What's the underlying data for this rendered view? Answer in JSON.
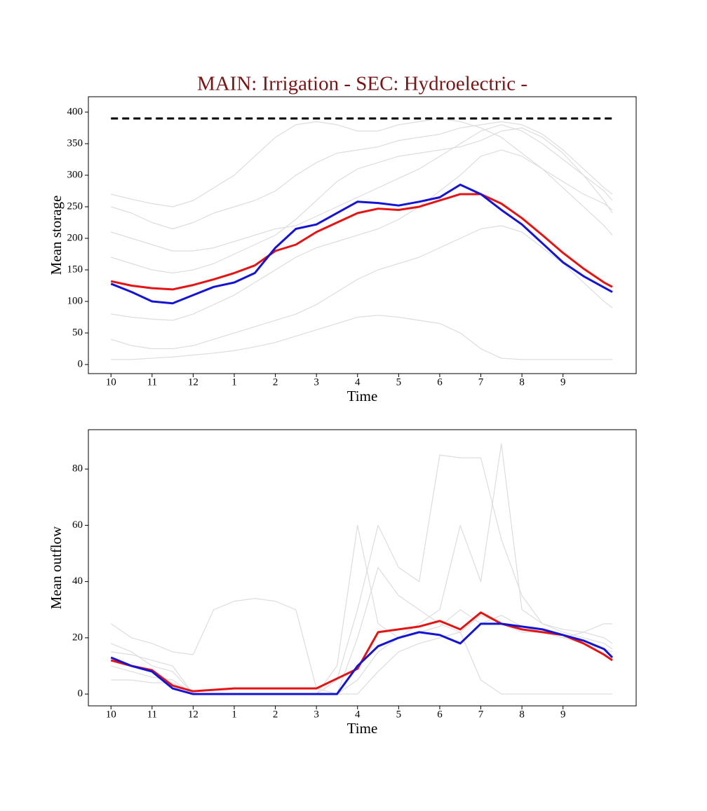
{
  "chart_data": [
    {
      "type": "line",
      "title": "MAIN: Irrigation - SEC: Hydroelectric -",
      "title_color": "#7b1414",
      "xlabel": "Time",
      "ylabel": "Mean storage",
      "x": [
        0,
        0.5,
        1,
        1.5,
        2,
        2.5,
        3,
        3.5,
        4,
        4.5,
        5,
        5.5,
        6,
        6.5,
        7,
        7.5,
        8,
        8.5,
        9,
        9.5,
        10,
        10.5,
        11,
        11.5,
        12,
        12.2
      ],
      "xlim": [
        -0.55,
        12.78
      ],
      "xticks": [
        {
          "value": 0,
          "label": "10"
        },
        {
          "value": 1,
          "label": "11"
        },
        {
          "value": 2,
          "label": "12"
        },
        {
          "value": 3,
          "label": "1"
        },
        {
          "value": 4,
          "label": "2"
        },
        {
          "value": 5,
          "label": "3"
        },
        {
          "value": 6,
          "label": "4"
        },
        {
          "value": 7,
          "label": "5"
        },
        {
          "value": 8,
          "label": "6"
        },
        {
          "value": 9,
          "label": "7"
        },
        {
          "value": 10,
          "label": "8"
        },
        {
          "value": 11,
          "label": "9"
        }
      ],
      "ylim": [
        -14.4,
        424.4
      ],
      "yticks": [
        0,
        50,
        100,
        150,
        200,
        250,
        300,
        350,
        400
      ],
      "series": [
        {
          "color": "#dddddd",
          "width": 1.2,
          "values": [
            270,
            262,
            255,
            250,
            260,
            280,
            300,
            330,
            360,
            380,
            385,
            380,
            370,
            370,
            380,
            385,
            390,
            385,
            375,
            360,
            335,
            310,
            290,
            270,
            255,
            245
          ]
        },
        {
          "color": "#dddddd",
          "width": 1.2,
          "values": [
            250,
            240,
            225,
            215,
            225,
            240,
            250,
            260,
            275,
            300,
            320,
            335,
            340,
            345,
            355,
            360,
            365,
            375,
            380,
            385,
            380,
            365,
            340,
            310,
            280,
            270
          ]
        },
        {
          "color": "#dddddd",
          "width": 1.2,
          "values": [
            210,
            200,
            190,
            180,
            180,
            185,
            195,
            205,
            215,
            220,
            235,
            250,
            265,
            280,
            295,
            310,
            330,
            350,
            370,
            380,
            370,
            350,
            325,
            300,
            275,
            260
          ]
        },
        {
          "color": "#dddddd",
          "width": 1.2,
          "values": [
            170,
            160,
            150,
            145,
            150,
            160,
            175,
            190,
            205,
            230,
            260,
            290,
            310,
            320,
            330,
            335,
            340,
            345,
            355,
            370,
            375,
            360,
            335,
            300,
            260,
            240
          ]
        },
        {
          "color": "#dddddd",
          "width": 1.2,
          "values": [
            80,
            75,
            72,
            70,
            80,
            95,
            110,
            130,
            150,
            170,
            185,
            195,
            205,
            215,
            230,
            250,
            275,
            300,
            330,
            340,
            330,
            310,
            280,
            250,
            220,
            205
          ]
        },
        {
          "color": "#dddddd",
          "width": 1.2,
          "values": [
            40,
            30,
            25,
            25,
            30,
            40,
            50,
            60,
            70,
            80,
            95,
            115,
            135,
            150,
            160,
            170,
            185,
            200,
            215,
            220,
            210,
            185,
            160,
            130,
            100,
            90
          ]
        },
        {
          "color": "#dddddd",
          "width": 1.2,
          "values": [
            8,
            8,
            10,
            12,
            15,
            18,
            22,
            28,
            35,
            45,
            55,
            65,
            75,
            78,
            75,
            70,
            65,
            50,
            25,
            10,
            8,
            8,
            8,
            8,
            8,
            8
          ]
        },
        {
          "color": "#000000",
          "width": 3,
          "dashed": true,
          "values": [
            390,
            390,
            390,
            390,
            390,
            390,
            390,
            390,
            390,
            390,
            390,
            390,
            390,
            390,
            390,
            390,
            390,
            390,
            390,
            390,
            390,
            390,
            390,
            390,
            390,
            390
          ]
        },
        {
          "color": "#e31414",
          "width": 3,
          "values": [
            132,
            125,
            121,
            119,
            126,
            135,
            145,
            157,
            180,
            190,
            210,
            225,
            240,
            247,
            245,
            250,
            260,
            270,
            270,
            255,
            232,
            205,
            177,
            152,
            130,
            123
          ]
        },
        {
          "color": "#1414d2",
          "width": 3,
          "values": [
            128,
            115,
            100,
            97,
            110,
            123,
            130,
            145,
            185,
            215,
            222,
            240,
            258,
            256,
            252,
            258,
            265,
            285,
            270,
            245,
            222,
            192,
            162,
            140,
            122,
            115
          ]
        }
      ]
    },
    {
      "type": "line",
      "xlabel": "Time",
      "ylabel": "Mean outflow",
      "x": [
        0,
        0.5,
        1,
        1.5,
        2,
        2.5,
        3,
        3.5,
        4,
        4.5,
        5,
        5.5,
        6,
        6.5,
        7,
        7.5,
        8,
        8.5,
        9,
        9.5,
        10,
        10.5,
        11,
        11.5,
        12,
        12.2
      ],
      "xlim": [
        -0.55,
        12.78
      ],
      "xticks": [
        {
          "value": 0,
          "label": "10"
        },
        {
          "value": 1,
          "label": "11"
        },
        {
          "value": 2,
          "label": "12"
        },
        {
          "value": 3,
          "label": "1"
        },
        {
          "value": 4,
          "label": "2"
        },
        {
          "value": 5,
          "label": "3"
        },
        {
          "value": 6,
          "label": "4"
        },
        {
          "value": 7,
          "label": "5"
        },
        {
          "value": 8,
          "label": "6"
        },
        {
          "value": 9,
          "label": "7"
        },
        {
          "value": 10,
          "label": "8"
        },
        {
          "value": 11,
          "label": "9"
        }
      ],
      "ylim": [
        -4.2,
        94
      ],
      "yticks": [
        0,
        20,
        40,
        60,
        80
      ],
      "series": [
        {
          "color": "#dddddd",
          "width": 1.2,
          "values": [
            25,
            20,
            18,
            15,
            14,
            30,
            33,
            34,
            33,
            30,
            2,
            0,
            20,
            45,
            35,
            30,
            25,
            22,
            28,
            25,
            22,
            22,
            20,
            22,
            25,
            25
          ]
        },
        {
          "color": "#dddddd",
          "width": 1.2,
          "values": [
            15,
            14,
            12,
            10,
            0,
            0,
            0,
            0,
            0,
            0,
            0,
            5,
            30,
            60,
            45,
            40,
            85,
            84,
            84,
            55,
            35,
            25,
            23,
            22,
            20,
            18
          ]
        },
        {
          "color": "#dddddd",
          "width": 1.2,
          "values": [
            18,
            15,
            10,
            8,
            0,
            0,
            0,
            0,
            0,
            0,
            0,
            10,
            60,
            25,
            20,
            25,
            30,
            60,
            40,
            89,
            30,
            25,
            22,
            20,
            18,
            16
          ]
        },
        {
          "color": "#dddddd",
          "width": 1.2,
          "values": [
            10,
            8,
            6,
            5,
            0,
            0,
            0,
            0,
            0,
            0,
            0,
            0,
            5,
            15,
            20,
            22,
            24,
            30,
            25,
            28,
            24,
            22,
            20,
            18,
            16,
            15
          ]
        },
        {
          "color": "#dddddd",
          "width": 1.2,
          "values": [
            5,
            5,
            4,
            4,
            0,
            0,
            0,
            0,
            0,
            0,
            0,
            0,
            0,
            8,
            15,
            18,
            20,
            22,
            5,
            0,
            0,
            0,
            0,
            0,
            0,
            0
          ]
        },
        {
          "color": "#e31414",
          "width": 3,
          "values": [
            12,
            10,
            8.5,
            3,
            1,
            1.5,
            2,
            2,
            2,
            2,
            2,
            5.5,
            9,
            22,
            23,
            24,
            26,
            23,
            29,
            25,
            23,
            22,
            21,
            18,
            14,
            12
          ]
        },
        {
          "color": "#1414d2",
          "width": 3,
          "values": [
            13,
            10,
            8,
            2,
            0,
            0,
            0,
            0,
            0,
            0,
            0,
            0,
            10,
            17,
            20,
            22,
            21,
            18,
            25,
            25,
            24,
            23,
            21,
            19,
            16,
            13
          ]
        }
      ]
    }
  ]
}
